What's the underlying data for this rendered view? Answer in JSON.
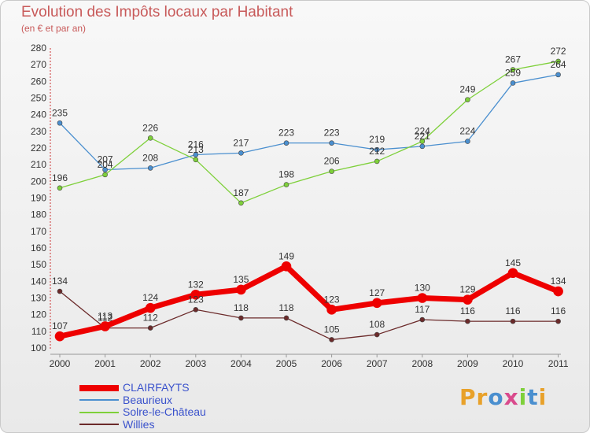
{
  "title": "Evolution des Impôts locaux par Habitant",
  "subtitle": "(en € et par an)",
  "logo": "Proxiti",
  "chart_data": {
    "type": "line",
    "title": "Evolution des Impôts locaux par Habitant",
    "subtitle": "(en € et par an)",
    "xlabel": "",
    "ylabel": "",
    "x": [
      "2000",
      "2001",
      "2002",
      "2003",
      "2004",
      "2005",
      "2006",
      "2007",
      "2008",
      "2009",
      "2010",
      "2011"
    ],
    "yticks": [
      100,
      110,
      120,
      130,
      140,
      150,
      160,
      170,
      180,
      190,
      200,
      210,
      220,
      230,
      240,
      250,
      260,
      270,
      280
    ],
    "ylim": [
      100,
      280
    ],
    "grid": false,
    "legend_position": "bottom-left",
    "series": [
      {
        "name": "CLAIRFAYTS",
        "color": "#ee0000",
        "values": [
          107,
          113,
          124,
          132,
          135,
          149,
          123,
          127,
          130,
          129,
          145,
          134
        ]
      },
      {
        "name": "Beaurieux",
        "color": "#4a8fcf",
        "values": [
          235,
          207,
          208,
          216,
          217,
          223,
          223,
          219,
          221,
          224,
          259,
          264
        ]
      },
      {
        "name": "Solre-le-Château",
        "color": "#7ed03a",
        "values": [
          196,
          204,
          226,
          213,
          187,
          198,
          206,
          212,
          224,
          249,
          267,
          272
        ]
      },
      {
        "name": "Willies",
        "color": "#6b2a2a",
        "values": [
          134,
          112,
          112,
          123,
          118,
          118,
          105,
          108,
          117,
          116,
          116,
          116
        ]
      }
    ]
  }
}
